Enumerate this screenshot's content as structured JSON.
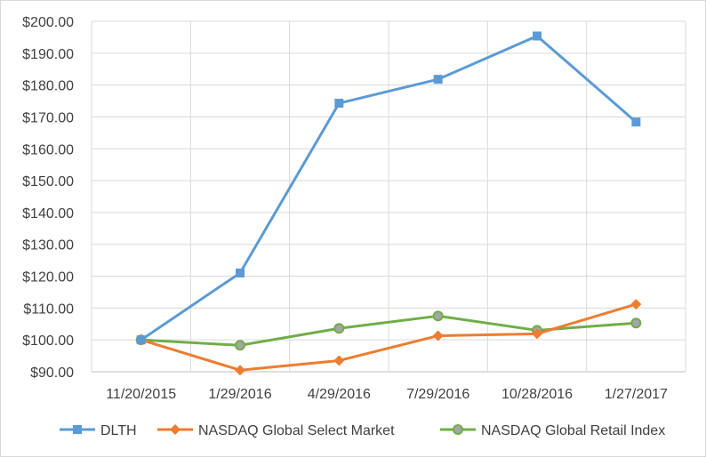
{
  "chart_data": {
    "type": "line",
    "categories": [
      "11/20/2015",
      "1/29/2016",
      "4/29/2016",
      "7/29/2016",
      "10/28/2016",
      "1/27/2017"
    ],
    "series": [
      {
        "name": "DLTH",
        "values": [
          100.0,
          121.0,
          174.3,
          181.8,
          195.4,
          168.4
        ],
        "color": "#5b9bd5",
        "marker": "square"
      },
      {
        "name": "NASDAQ Global Select Market",
        "values": [
          100.0,
          90.5,
          93.5,
          101.3,
          101.9,
          111.2
        ],
        "color": "#ed7d31",
        "marker": "diamond"
      },
      {
        "name": "NASDAQ Global Retail Index",
        "values": [
          100.0,
          98.3,
          103.6,
          107.5,
          103.0,
          105.3
        ],
        "color": "#70ad47",
        "marker": "circle"
      }
    ],
    "y_ticks": [
      "$90.00",
      "$100.00",
      "$110.00",
      "$120.00",
      "$130.00",
      "$140.00",
      "$150.00",
      "$160.00",
      "$170.00",
      "$180.00",
      "$190.00",
      "$200.00"
    ],
    "ylim": [
      90,
      200
    ],
    "grid": true,
    "legend_position": "bottom",
    "title": "",
    "xlabel": "",
    "ylabel": ""
  }
}
